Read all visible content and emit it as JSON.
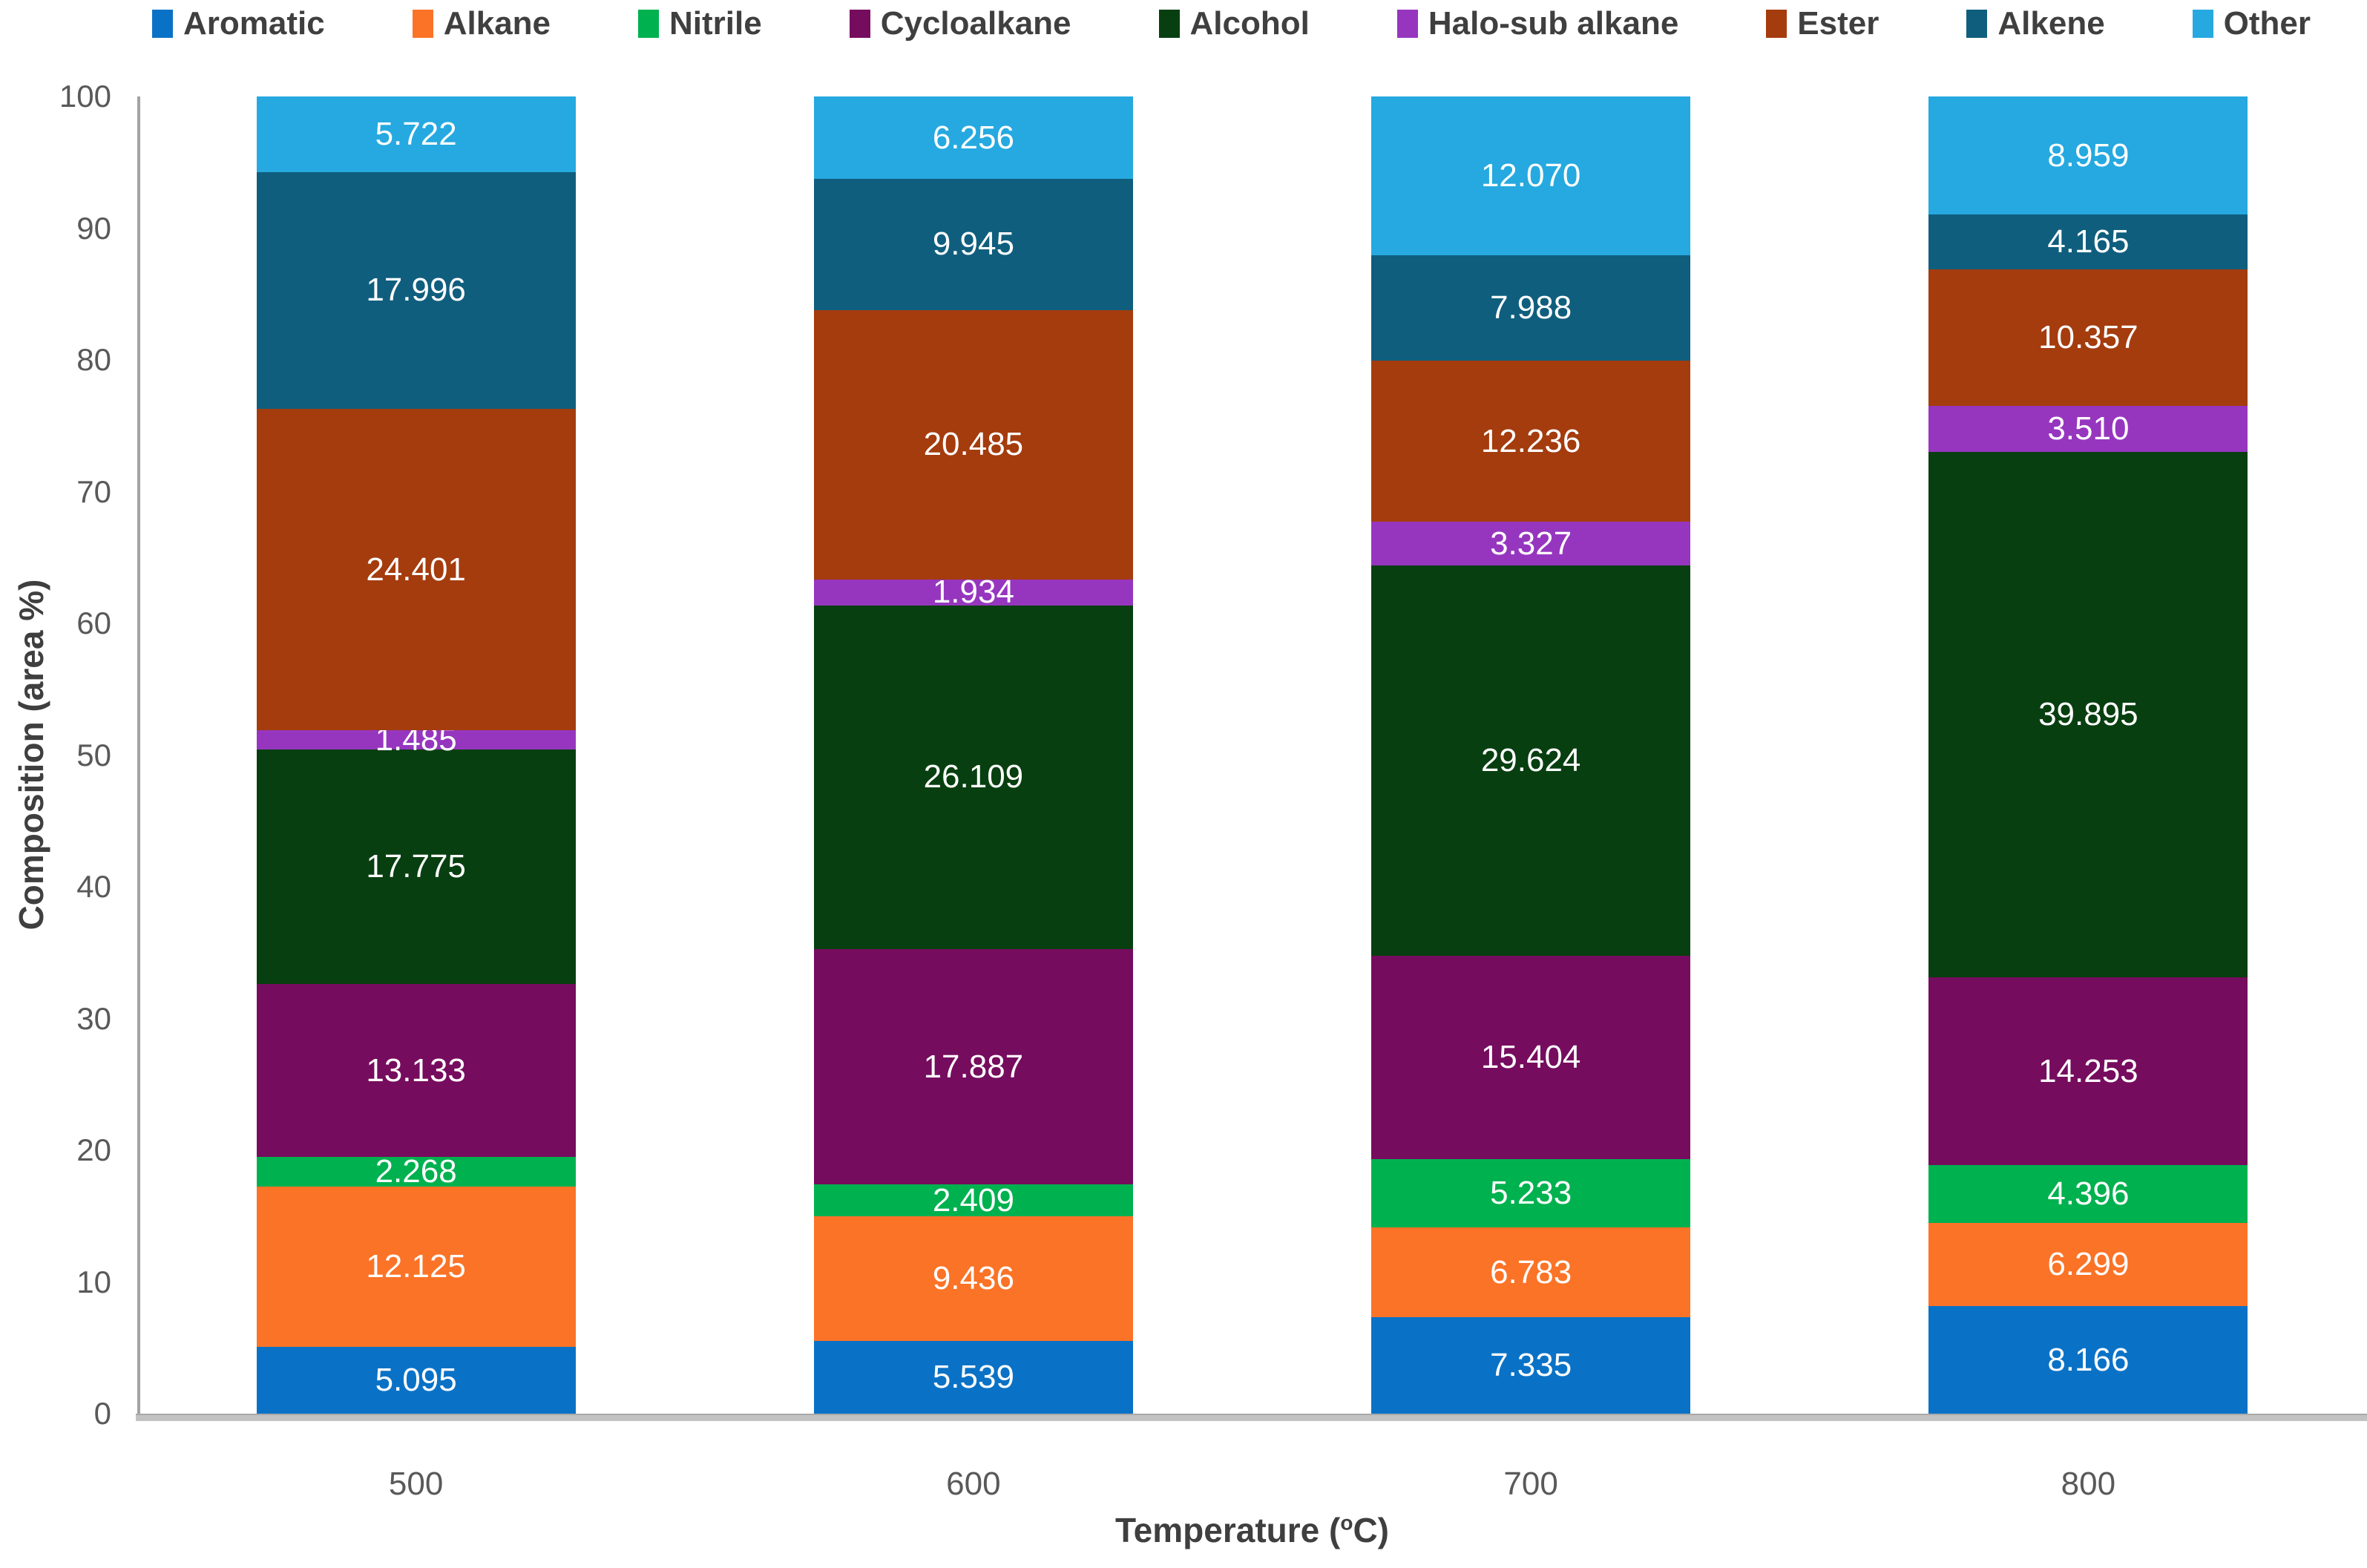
{
  "chart_data": {
    "type": "bar",
    "stacked": true,
    "title": "",
    "categories": [
      "500",
      "600",
      "700",
      "800"
    ],
    "series": [
      {
        "name": "Aromatic",
        "color": "#0a72c6",
        "values": [
          5.095,
          5.539,
          7.335,
          8.166
        ]
      },
      {
        "name": "Alkane",
        "color": "#fb7327",
        "values": [
          12.125,
          9.436,
          6.783,
          6.299
        ]
      },
      {
        "name": "Nitrile",
        "color": "#00b14f",
        "values": [
          2.268,
          2.409,
          5.233,
          4.396
        ]
      },
      {
        "name": "Cycloalkane",
        "color": "#760c5e",
        "values": [
          13.133,
          17.887,
          15.404,
          14.253
        ]
      },
      {
        "name": "Alcohol",
        "color": "#083f10",
        "values": [
          17.775,
          26.109,
          29.624,
          39.895
        ]
      },
      {
        "name": "Halo-sub alkane",
        "color": "#9636bf",
        "values": [
          1.485,
          1.934,
          3.327,
          3.51
        ]
      },
      {
        "name": "Ester",
        "color": "#a43c0e",
        "values": [
          24.401,
          20.485,
          12.236,
          10.357
        ]
      },
      {
        "name": "Alkene",
        "color": "#105e7e",
        "values": [
          17.996,
          9.945,
          7.988,
          4.165
        ]
      },
      {
        "name": "Other",
        "color": "#25a9e0",
        "values": [
          5.722,
          6.256,
          12.07,
          8.959
        ]
      }
    ],
    "ylabel": "Composition (area %)",
    "xlabel": {
      "pre": "Temperature (",
      "sup": "o",
      "post": "C)"
    },
    "yticks": [
      0,
      10,
      20,
      30,
      40,
      50,
      60,
      70,
      80,
      90,
      100
    ],
    "ylim": [
      0,
      100
    ],
    "value_decimals": 3,
    "legend_position": "top",
    "grid": false,
    "label_text_color": "#ffffff"
  }
}
